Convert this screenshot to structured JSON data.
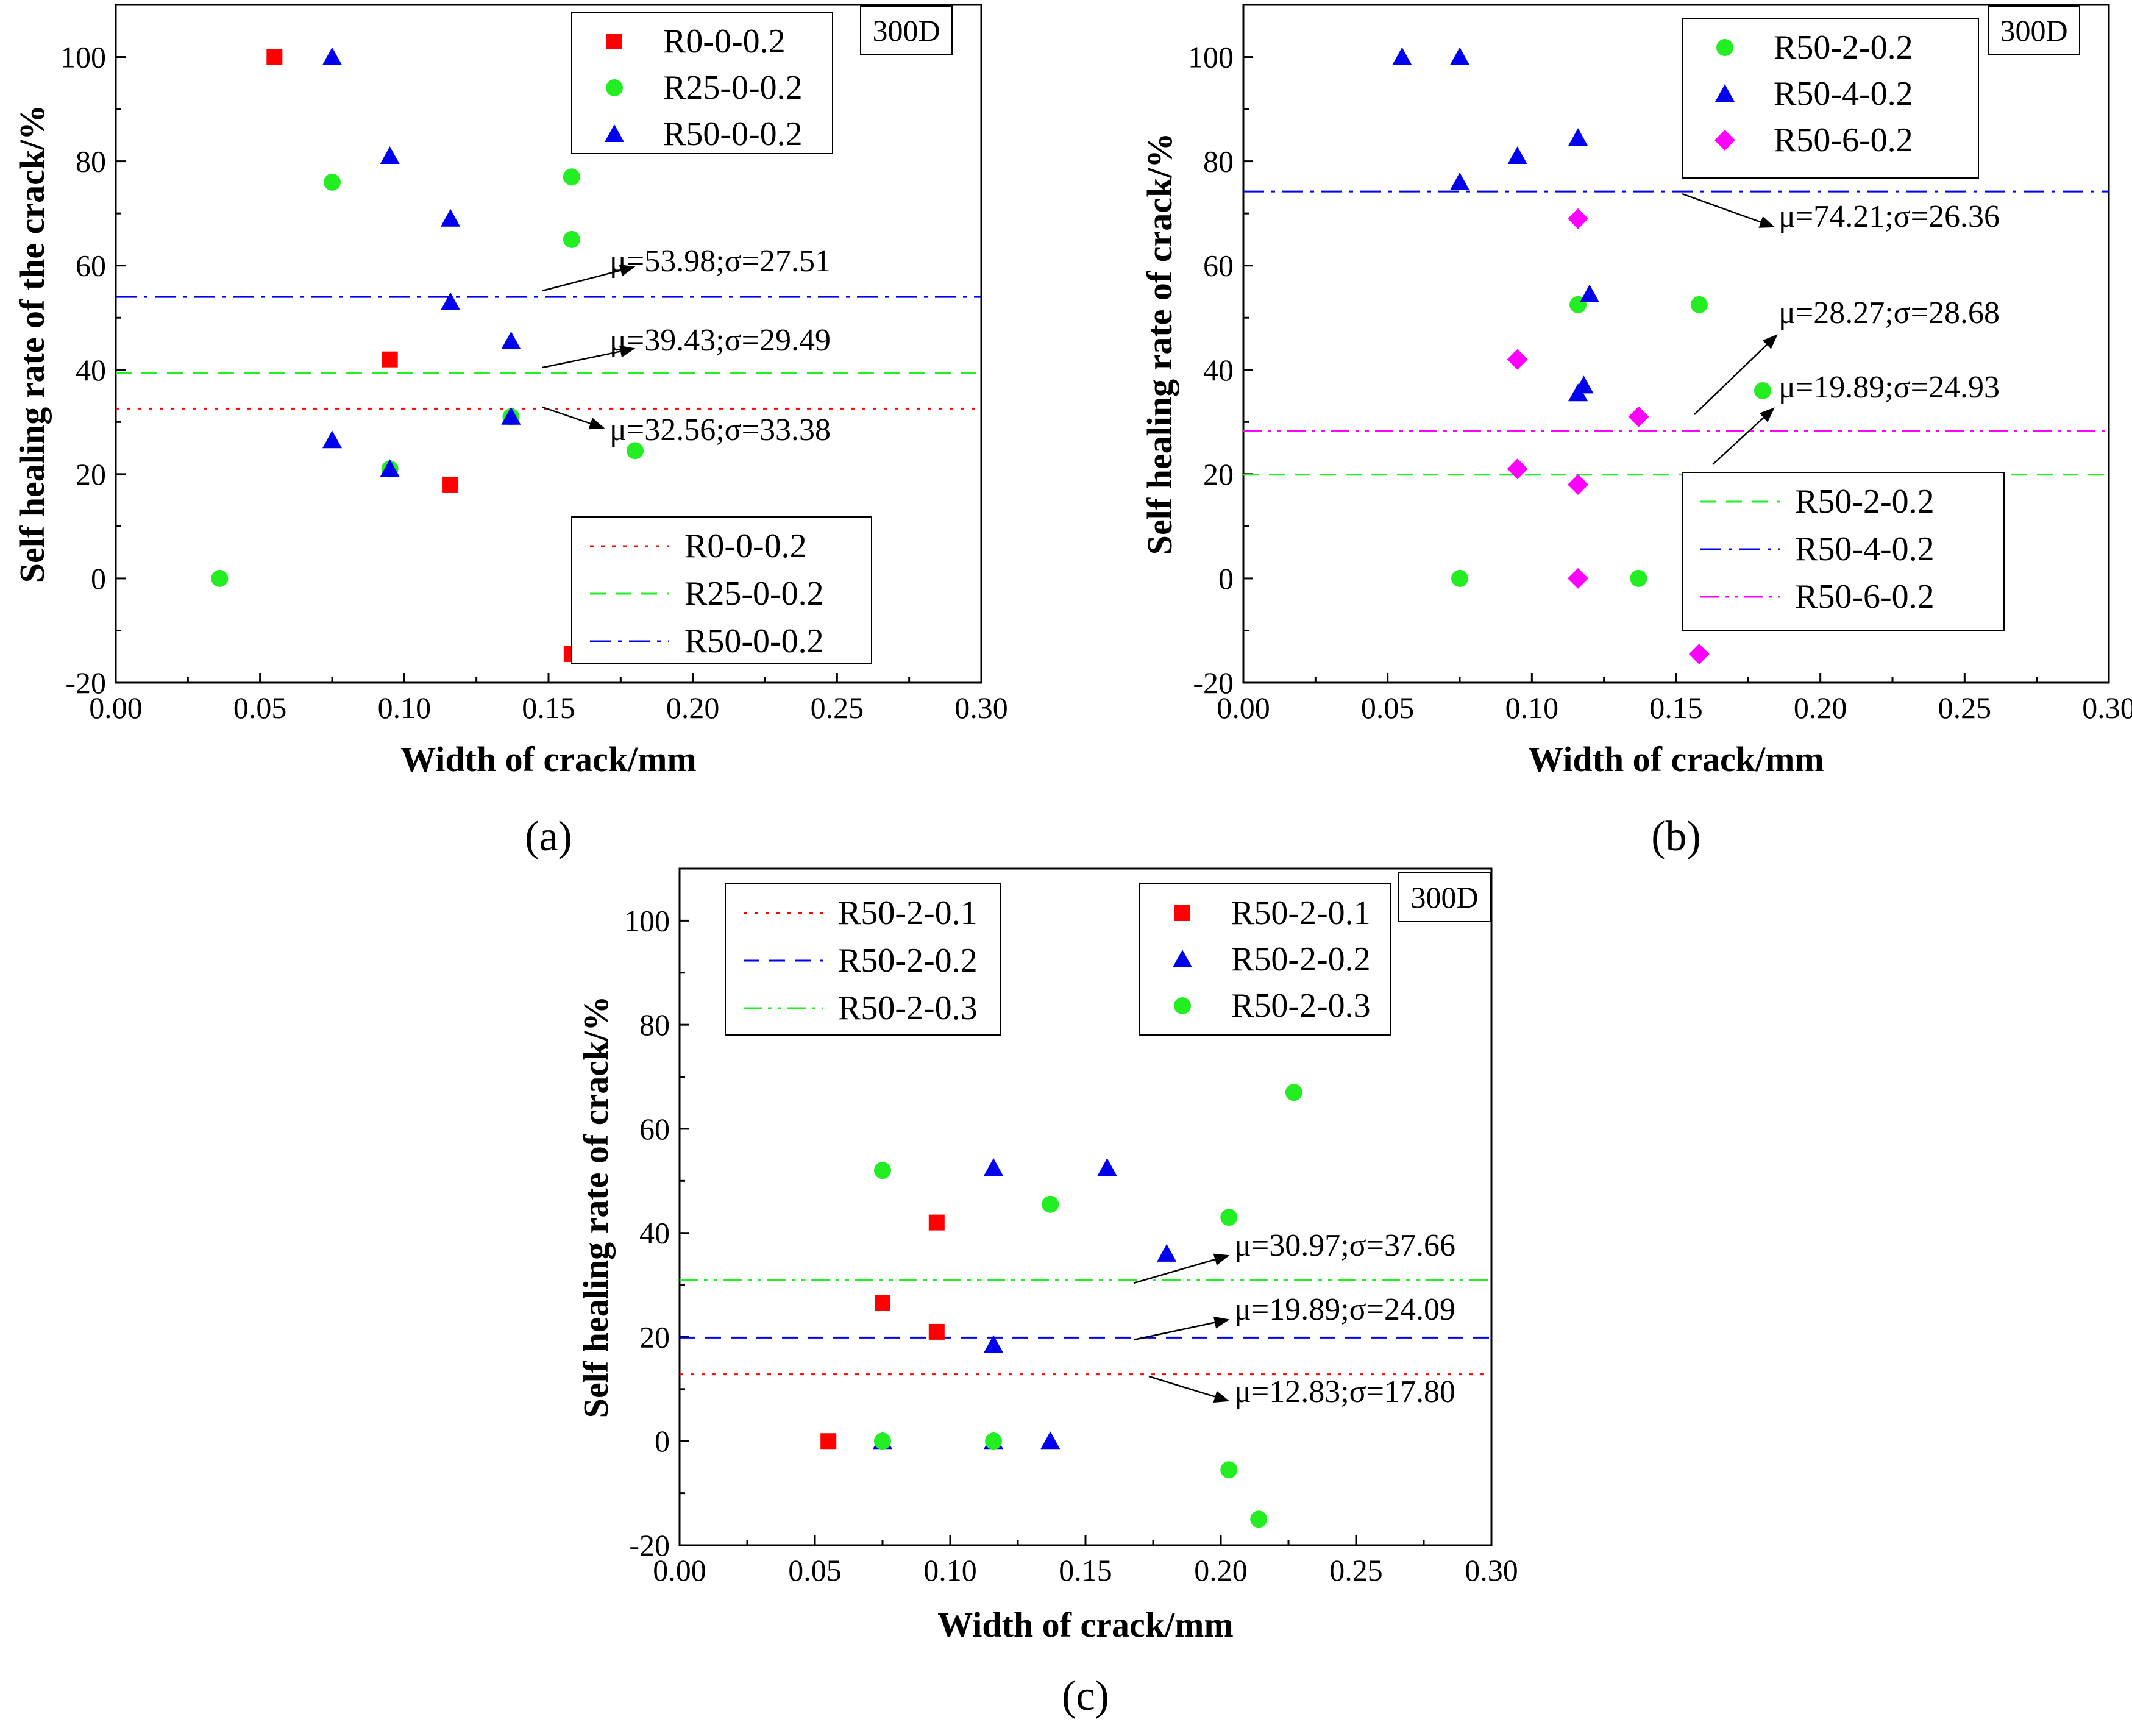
{
  "chart_data": [
    {
      "type": "scatter",
      "panel": "(a)",
      "label_300D": "300D",
      "xlabel": "Width of crack/mm",
      "ylabel": "Self healing rate of the crack/%",
      "xlim": [
        0,
        0.3
      ],
      "ylim": [
        -20,
        110
      ],
      "xticks": [
        "0.00",
        "0.05",
        "0.10",
        "0.15",
        "0.20",
        "0.25",
        "0.30"
      ],
      "yticks": [
        "-20",
        "0",
        "20",
        "40",
        "60",
        "80",
        "100"
      ],
      "colors": {
        "red": "#ff0000",
        "green": "#22ee22",
        "blue": "#0000ee",
        "magenta": "#ff00ff"
      },
      "series": [
        {
          "name": "R0-0-0.2",
          "marker": "square",
          "color": "red",
          "points": [
            [
              0.055,
              100
            ],
            [
              0.095,
              42
            ],
            [
              0.116,
              18
            ],
            [
              0.158,
              -14.5
            ]
          ]
        },
        {
          "name": "R25-0-0.2",
          "marker": "circle",
          "color": "green",
          "points": [
            [
              0.036,
              0
            ],
            [
              0.075,
              76
            ],
            [
              0.095,
              21
            ],
            [
              0.137,
              31
            ],
            [
              0.158,
              77
            ],
            [
              0.158,
              65
            ],
            [
              0.18,
              24.5
            ]
          ]
        },
        {
          "name": "R50-0-0.2",
          "marker": "triangle",
          "color": "blue",
          "points": [
            [
              0.075,
              100
            ],
            [
              0.075,
              26.5
            ],
            [
              0.095,
              81
            ],
            [
              0.095,
              21
            ],
            [
              0.116,
              69
            ],
            [
              0.116,
              53
            ],
            [
              0.137,
              45.5
            ],
            [
              0.137,
              31
            ]
          ]
        }
      ],
      "mean_lines": [
        {
          "name": "R0-0-0.2",
          "value": 32.56,
          "style": "dot",
          "color": "red",
          "label": "μ=32.56;σ=33.38"
        },
        {
          "name": "R25-0-0.2",
          "value": 39.43,
          "style": "dash",
          "color": "green",
          "label": "μ=39.43;σ=29.49"
        },
        {
          "name": "R50-0-0.2",
          "value": 53.98,
          "style": "dashdot",
          "color": "blue",
          "label": "μ=53.98;σ=27.51"
        }
      ]
    },
    {
      "type": "scatter",
      "panel": "(b)",
      "label_300D": "300D",
      "xlabel": "Width of crack/mm",
      "ylabel": "Self healing rate of crack/%",
      "xlim": [
        0,
        0.3
      ],
      "ylim": [
        -20,
        110
      ],
      "xticks": [
        "0.00",
        "0.05",
        "0.10",
        "0.15",
        "0.20",
        "0.25",
        "0.30"
      ],
      "yticks": [
        "-20",
        "0",
        "20",
        "40",
        "60",
        "80",
        "100"
      ],
      "series": [
        {
          "name": "R50-2-0.2",
          "marker": "circle",
          "color": "green",
          "points": [
            [
              0.075,
              0
            ],
            [
              0.116,
              52.5
            ],
            [
              0.137,
              0
            ],
            [
              0.158,
              52.5
            ],
            [
              0.18,
              36
            ]
          ]
        },
        {
          "name": "R50-4-0.2",
          "marker": "triangle",
          "color": "blue",
          "points": [
            [
              0.055,
              100
            ],
            [
              0.075,
              100
            ],
            [
              0.075,
              76
            ],
            [
              0.095,
              81
            ],
            [
              0.116,
              84.5
            ],
            [
              0.12,
              54.5
            ],
            [
              0.118,
              37
            ],
            [
              0.116,
              35.5
            ]
          ]
        },
        {
          "name": "R50-6-0.2",
          "marker": "diamond",
          "color": "magenta",
          "points": [
            [
              0.095,
              42
            ],
            [
              0.095,
              21
            ],
            [
              0.116,
              69
            ],
            [
              0.116,
              18
            ],
            [
              0.116,
              0
            ],
            [
              0.137,
              31
            ],
            [
              0.158,
              -14.5
            ]
          ]
        }
      ],
      "mean_lines": [
        {
          "name": "R50-2-0.2",
          "value": 19.89,
          "style": "dash",
          "color": "green",
          "label": "μ=19.89;σ=24.93"
        },
        {
          "name": "R50-4-0.2",
          "value": 74.21,
          "style": "dashdot",
          "color": "blue",
          "label": "μ=74.21;σ=26.36"
        },
        {
          "name": "R50-6-0.2",
          "value": 28.27,
          "style": "dashdotdot",
          "color": "magenta",
          "label": "μ=28.27;σ=28.68"
        }
      ]
    },
    {
      "type": "scatter",
      "panel": "(c)",
      "label_300D": "300D",
      "xlabel": "Width of crack/mm",
      "ylabel": "Self healing rate of crack/%",
      "xlim": [
        0,
        0.3
      ],
      "ylim": [
        -20,
        110
      ],
      "xticks": [
        "0.00",
        "0.05",
        "0.10",
        "0.15",
        "0.20",
        "0.25",
        "0.30"
      ],
      "yticks": [
        "-20",
        "0",
        "20",
        "40",
        "60",
        "80",
        "100"
      ],
      "series": [
        {
          "name": "R50-2-0.1",
          "marker": "square",
          "color": "red",
          "points": [
            [
              0.055,
              0
            ],
            [
              0.075,
              26.5
            ],
            [
              0.095,
              42
            ],
            [
              0.095,
              21
            ]
          ]
        },
        {
          "name": "R50-2-0.2",
          "marker": "triangle",
          "color": "blue",
          "points": [
            [
              0.075,
              0
            ],
            [
              0.116,
              52.5
            ],
            [
              0.116,
              18.5
            ],
            [
              0.116,
              0
            ],
            [
              0.137,
              0
            ],
            [
              0.158,
              52.5
            ],
            [
              0.18,
              36
            ]
          ]
        },
        {
          "name": "R50-2-0.3",
          "marker": "circle",
          "color": "green",
          "points": [
            [
              0.075,
              52
            ],
            [
              0.075,
              0
            ],
            [
              0.116,
              0
            ],
            [
              0.137,
              45.5
            ],
            [
              0.203,
              43
            ],
            [
              0.203,
              -5.5
            ],
            [
              0.214,
              -15
            ],
            [
              0.227,
              67
            ]
          ]
        }
      ],
      "mean_lines": [
        {
          "name": "R50-2-0.1",
          "value": 12.83,
          "style": "dot",
          "color": "red",
          "label": "μ=12.83;σ=17.80"
        },
        {
          "name": "R50-2-0.2",
          "value": 19.89,
          "style": "dash",
          "color": "blue",
          "label": "μ=19.89;σ=24.09"
        },
        {
          "name": "R50-2-0.3",
          "value": 30.97,
          "style": "dashdotdot",
          "color": "green",
          "label": "μ=30.97;σ=37.66"
        }
      ]
    }
  ]
}
